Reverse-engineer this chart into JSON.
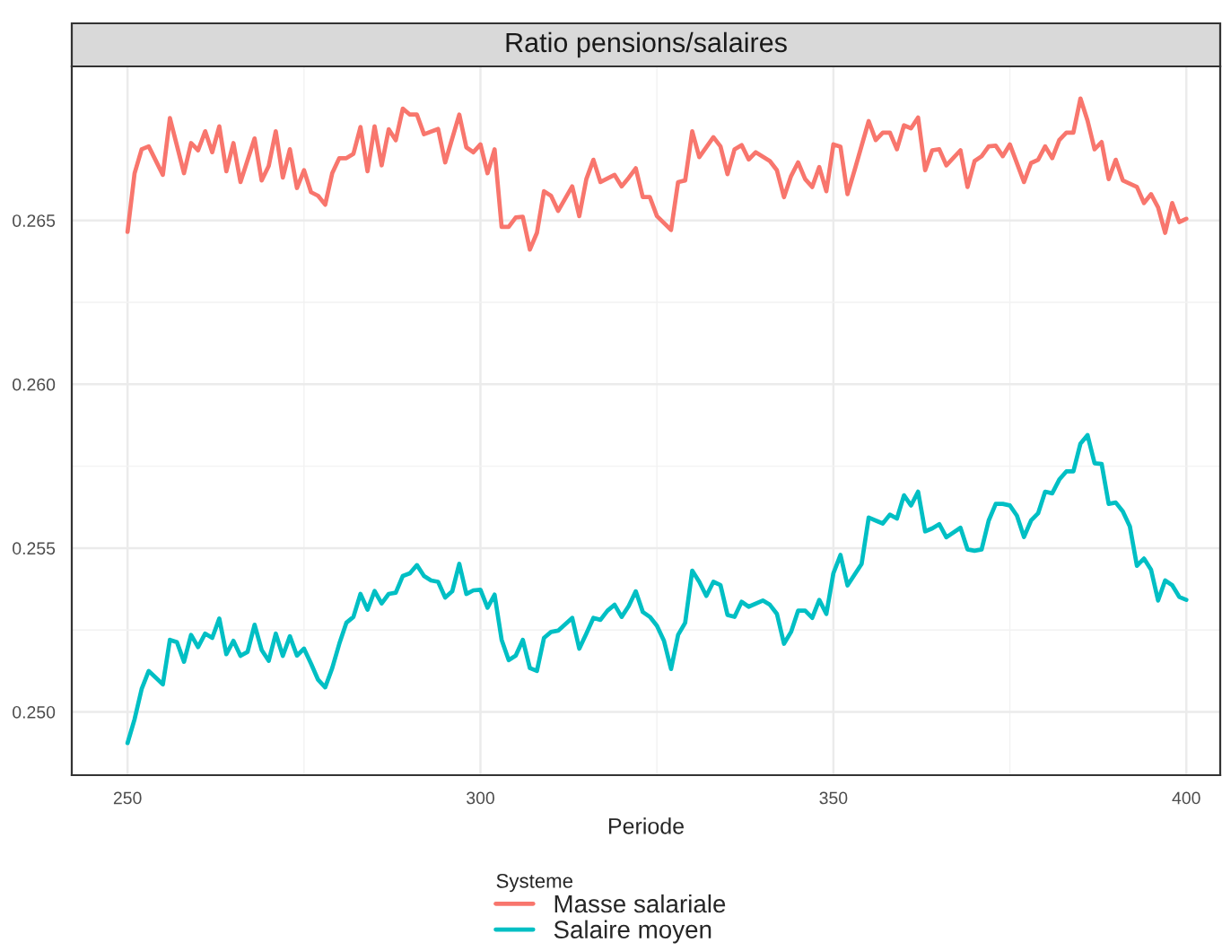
{
  "chart_data": {
    "type": "line",
    "title": "Ratio pensions/salaires",
    "xlabel": "Periode",
    "legend_title": "Systeme",
    "xlim": [
      242.1,
      404.8
    ],
    "xticks": [
      250,
      300,
      350,
      400
    ],
    "ylim": [
      0.24807,
      0.2697
    ],
    "yticks": [
      {
        "value": 0.25,
        "label": "0.250"
      },
      0.255,
      {
        "value": 0.26,
        "label": "0.260"
      },
      0.265
    ],
    "grid": true,
    "legend": "bottom",
    "line_style": "solid",
    "marker": "none",
    "series": [
      {
        "name": "Masse salariale",
        "color": "#f8766d",
        "x": [
          250,
          251,
          252,
          253,
          255,
          256,
          258,
          259,
          260,
          261,
          262,
          263,
          264,
          265,
          266,
          268,
          269,
          270,
          271,
          272,
          273,
          274,
          275,
          276,
          277,
          278,
          279,
          280,
          281,
          282,
          283,
          284,
          285,
          286,
          287,
          288,
          289,
          290,
          291,
          292,
          294,
          295,
          297,
          298,
          299,
          300,
          301,
          302,
          303,
          304,
          305,
          306,
          307,
          308,
          309,
          310,
          311,
          313,
          314,
          315,
          316,
          317,
          319,
          320,
          321,
          322,
          323,
          324,
          325,
          327,
          328,
          329,
          330,
          331,
          333,
          334,
          335,
          336,
          337,
          338,
          339,
          341,
          342,
          343,
          344,
          345,
          346,
          347,
          348,
          349,
          350,
          351,
          352,
          353,
          355,
          356,
          357,
          358,
          359,
          360,
          361,
          362,
          363,
          364,
          365,
          366,
          368,
          369,
          370,
          371,
          372,
          373,
          374,
          375,
          377,
          378,
          379,
          380,
          381,
          382,
          383,
          384,
          385,
          386,
          387,
          388,
          389,
          390,
          391,
          393,
          394,
          395,
          396,
          397,
          398,
          399,
          400
        ],
        "values": [
          0.26465,
          0.26644,
          0.26717,
          0.26726,
          0.26639,
          0.26812,
          0.26644,
          0.26736,
          0.26714,
          0.26772,
          0.26708,
          0.26787,
          0.2665,
          0.26736,
          0.26617,
          0.2675,
          0.26622,
          0.26666,
          0.26772,
          0.26631,
          0.26717,
          0.26599,
          0.26653,
          0.26586,
          0.26575,
          0.26548,
          0.26644,
          0.2669,
          0.2669,
          0.26703,
          0.26785,
          0.2665,
          0.26787,
          0.26668,
          0.26778,
          0.26745,
          0.26841,
          0.26823,
          0.26823,
          0.26763,
          0.26779,
          0.26677,
          0.26823,
          0.26723,
          0.26708,
          0.26732,
          0.26644,
          0.26717,
          0.2648,
          0.2648,
          0.26509,
          0.26511,
          0.26411,
          0.26462,
          0.26589,
          0.26575,
          0.26529,
          0.26604,
          0.26513,
          0.26626,
          0.26685,
          0.26617,
          0.26639,
          0.26604,
          0.2663,
          0.26659,
          0.26571,
          0.26571,
          0.26513,
          0.26471,
          0.26617,
          0.26622,
          0.26772,
          0.26693,
          0.26754,
          0.26726,
          0.26641,
          0.26717,
          0.2673,
          0.26686,
          0.26708,
          0.26681,
          0.26653,
          0.26571,
          0.26635,
          0.26677,
          0.26626,
          0.26602,
          0.26663,
          0.26589,
          0.26732,
          0.26725,
          0.2658,
          0.26653,
          0.26803,
          0.26745,
          0.26768,
          0.26768,
          0.26717,
          0.2679,
          0.26781,
          0.26814,
          0.26653,
          0.26714,
          0.26717,
          0.26668,
          0.26714,
          0.26602,
          0.26681,
          0.26696,
          0.26726,
          0.26728,
          0.26696,
          0.26732,
          0.26617,
          0.26675,
          0.26685,
          0.26726,
          0.2669,
          0.26745,
          0.26768,
          0.26768,
          0.26872,
          0.26805,
          0.26717,
          0.26739,
          0.26626,
          0.26685,
          0.26622,
          0.26602,
          0.26553,
          0.2658,
          0.2654,
          0.26462,
          0.26553,
          0.26495,
          0.26505
        ]
      },
      {
        "name": "Salaire moyen",
        "color": "#00bfc4",
        "x": [
          250,
          251,
          252,
          253,
          255,
          256,
          257,
          258,
          259,
          260,
          261,
          262,
          263,
          264,
          265,
          266,
          267,
          268,
          269,
          270,
          271,
          272,
          273,
          274,
          275,
          276,
          277,
          278,
          279,
          280,
          281,
          282,
          283,
          284,
          285,
          286,
          287,
          288,
          289,
          290,
          291,
          292,
          293,
          294,
          295,
          296,
          297,
          298,
          299,
          300,
          301,
          302,
          303,
          304,
          305,
          306,
          307,
          308,
          309,
          310,
          311,
          313,
          314,
          315,
          316,
          317,
          318,
          319,
          320,
          321,
          322,
          323,
          324,
          325,
          326,
          327,
          328,
          329,
          330,
          331,
          332,
          333,
          334,
          335,
          336,
          337,
          338,
          340,
          341,
          342,
          343,
          344,
          345,
          346,
          347,
          348,
          349,
          350,
          351,
          352,
          353,
          354,
          355,
          356,
          357,
          358,
          359,
          360,
          361,
          362,
          363,
          364,
          365,
          366,
          368,
          369,
          370,
          371,
          372,
          373,
          374,
          375,
          376,
          377,
          378,
          379,
          380,
          381,
          382,
          383,
          384,
          385,
          386,
          387,
          388,
          389,
          390,
          391,
          392,
          393,
          394,
          395,
          396,
          397,
          398,
          399,
          400
        ],
        "values": [
          0.24905,
          0.24978,
          0.2507,
          0.25125,
          0.25084,
          0.2522,
          0.25213,
          0.25153,
          0.25235,
          0.25198,
          0.25239,
          0.25226,
          0.25285,
          0.25176,
          0.25217,
          0.25171,
          0.25183,
          0.25266,
          0.25189,
          0.25156,
          0.25239,
          0.25171,
          0.25231,
          0.25172,
          0.25193,
          0.25147,
          0.25098,
          0.25075,
          0.25134,
          0.25208,
          0.25272,
          0.2529,
          0.2536,
          0.25312,
          0.25369,
          0.25331,
          0.2536,
          0.25364,
          0.25415,
          0.25423,
          0.25448,
          0.25415,
          0.25401,
          0.25397,
          0.25349,
          0.25368,
          0.25452,
          0.2536,
          0.25371,
          0.25373,
          0.25318,
          0.25358,
          0.2522,
          0.25158,
          0.25172,
          0.2522,
          0.25134,
          0.25125,
          0.25226,
          0.25244,
          0.25248,
          0.25287,
          0.25193,
          0.25239,
          0.25287,
          0.25281,
          0.25309,
          0.25327,
          0.2529,
          0.25323,
          0.25368,
          0.25305,
          0.2529,
          0.25263,
          0.25217,
          0.25131,
          0.25235,
          0.25272,
          0.25431,
          0.25397,
          0.25354,
          0.25397,
          0.25387,
          0.25296,
          0.2529,
          0.25336,
          0.25321,
          0.2534,
          0.25327,
          0.25299,
          0.25208,
          0.25244,
          0.25309,
          0.25309,
          0.25287,
          0.25342,
          0.25299,
          0.25423,
          0.25479,
          0.25386,
          0.25419,
          0.25452,
          0.25593,
          0.25584,
          0.25575,
          0.25602,
          0.2559,
          0.25661,
          0.2563,
          0.25672,
          0.25551,
          0.2556,
          0.25573,
          0.25533,
          0.25562,
          0.25496,
          0.25492,
          0.25496,
          0.25584,
          0.25635,
          0.25635,
          0.2563,
          0.25599,
          0.25534,
          0.25584,
          0.25606,
          0.25672,
          0.25667,
          0.25709,
          0.25734,
          0.25734,
          0.25819,
          0.25845,
          0.25759,
          0.25757,
          0.25635,
          0.25639,
          0.25612,
          0.25566,
          0.25446,
          0.25468,
          0.25434,
          0.2534,
          0.25401,
          0.25387,
          0.25351,
          0.25342
        ]
      }
    ]
  }
}
